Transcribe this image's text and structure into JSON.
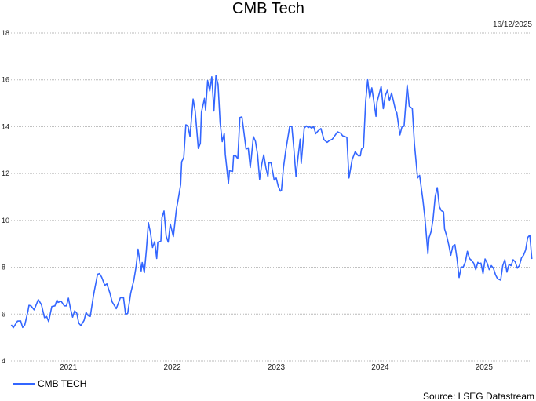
{
  "chart_data": {
    "type": "line",
    "title": "CMB Tech",
    "date_label": "16/12/2025",
    "source": "Source: LSEG Datastream",
    "xlabel": "",
    "ylabel": "",
    "ylim": [
      4,
      18
    ],
    "yticks": [
      4,
      6,
      8,
      10,
      12,
      14,
      16,
      18
    ],
    "ytick_labels": [
      "4",
      "6",
      "8",
      "10",
      "12",
      "14",
      "16",
      "18"
    ],
    "xlim": [
      2020.95,
      2025.96
    ],
    "xticks": [
      2021.5,
      2022.5,
      2023.5,
      2024.5,
      2025.5
    ],
    "xtick_labels": [
      "2021",
      "2022",
      "2023",
      "2024",
      "2025"
    ],
    "grid": "horizontal-dotted",
    "legend_position": "bottom-left",
    "series": [
      {
        "name": "CMB TECH",
        "color": "#3366ff",
        "x": [
          2020.95,
          2020.97,
          2021.01,
          2021.04,
          2021.06,
          2021.08,
          2021.11,
          2021.12,
          2021.14,
          2021.17,
          2021.21,
          2021.24,
          2021.27,
          2021.29,
          2021.31,
          2021.34,
          2021.37,
          2021.39,
          2021.4,
          2021.43,
          2021.46,
          2021.48,
          2021.5,
          2021.52,
          2021.54,
          2021.56,
          2021.58,
          2021.6,
          2021.62,
          2021.65,
          2021.67,
          2021.69,
          2021.71,
          2021.74,
          2021.75,
          2021.78,
          2021.8,
          2021.82,
          2021.85,
          2021.87,
          2021.9,
          2021.92,
          2021.96,
          2022.0,
          2022.03,
          2022.05,
          2022.07,
          2022.1,
          2022.13,
          2022.15,
          2022.17,
          2022.2,
          2022.21,
          2022.23,
          2022.25,
          2022.27,
          2022.29,
          2022.31,
          2022.33,
          2022.35,
          2022.36,
          2022.39,
          2022.4,
          2022.42,
          2022.44,
          2022.46,
          2022.48,
          2022.51,
          2022.54,
          2022.55,
          2022.58,
          2022.59,
          2022.61,
          2022.63,
          2022.65,
          2022.67,
          2022.7,
          2022.72,
          2022.75,
          2022.77,
          2022.78,
          2022.81,
          2022.82,
          2022.84,
          2022.86,
          2022.88,
          2022.9,
          2022.92,
          2022.94,
          2022.96,
          2022.98,
          2023.0,
          2023.01,
          2023.04,
          2023.05,
          2023.08,
          2023.09,
          2023.11,
          2023.13,
          2023.15,
          2023.17,
          2023.19,
          2023.21,
          2023.23,
          2023.25,
          2023.26,
          2023.28,
          2023.3,
          2023.32,
          2023.34,
          2023.36,
          2023.38,
          2023.4,
          2023.42,
          2023.43,
          2023.45,
          2023.48,
          2023.5,
          2023.52,
          2023.54,
          2023.55,
          2023.57,
          2023.59,
          2023.61,
          2023.63,
          2023.65,
          2023.67,
          2023.69,
          2023.71,
          2023.73,
          2023.74,
          2023.77,
          2023.79,
          2023.81,
          2023.82,
          2023.84,
          2023.86,
          2023.88,
          2023.9,
          2023.93,
          2023.96,
          2023.99,
          2024.01,
          2024.04,
          2024.09,
          2024.12,
          2024.14,
          2024.18,
          2024.2,
          2024.23,
          2024.26,
          2024.29,
          2024.31,
          2024.32,
          2024.34,
          2024.36,
          2024.38,
          2024.4,
          2024.42,
          2024.44,
          2024.46,
          2024.47,
          2024.51,
          2024.53,
          2024.55,
          2024.57,
          2024.59,
          2024.61,
          2024.65,
          2024.66,
          2024.69,
          2024.71,
          2024.73,
          2024.76,
          2024.78,
          2024.81,
          2024.83,
          2024.86,
          2024.88,
          2024.91,
          2024.93,
          2024.96,
          2024.97,
          2024.99,
          2025.01,
          2025.03,
          2025.05,
          2025.07,
          2025.09,
          2025.11,
          2025.12,
          2025.14,
          2025.16,
          2025.18,
          2025.2,
          2025.22,
          2025.24,
          2025.26,
          2025.28,
          2025.3,
          2025.32,
          2025.34,
          2025.36,
          2025.38,
          2025.4,
          2025.42,
          2025.44,
          2025.45,
          2025.47,
          2025.49,
          2025.51,
          2025.53,
          2025.55,
          2025.57,
          2025.59,
          2025.61,
          2025.63,
          2025.66,
          2025.68,
          2025.7,
          2025.72,
          2025.74,
          2025.76,
          2025.78,
          2025.8,
          2025.82,
          2025.84,
          2025.86,
          2025.88,
          2025.9,
          2025.92,
          2025.94,
          2025.96
        ],
        "y": [
          5.54,
          5.42,
          5.7,
          5.71,
          5.43,
          5.54,
          6.12,
          6.37,
          6.35,
          6.18,
          6.62,
          6.4,
          5.85,
          5.9,
          5.68,
          6.32,
          6.35,
          6.6,
          6.5,
          6.55,
          6.35,
          6.35,
          6.68,
          6.23,
          5.87,
          6.14,
          6.04,
          5.61,
          5.51,
          5.73,
          6.07,
          5.93,
          5.9,
          6.77,
          7.01,
          7.7,
          7.73,
          7.57,
          7.23,
          7.29,
          6.88,
          6.53,
          6.23,
          6.7,
          6.7,
          5.99,
          6.03,
          6.9,
          7.46,
          8.01,
          8.77,
          7.84,
          8.2,
          7.77,
          8.73,
          9.9,
          9.46,
          8.84,
          9.09,
          8.37,
          9.07,
          9.12,
          10.12,
          10.4,
          9.34,
          9.07,
          9.84,
          9.31,
          10.51,
          10.73,
          11.53,
          12.5,
          12.69,
          14.08,
          14.03,
          13.58,
          15.18,
          14.67,
          13.07,
          13.29,
          14.62,
          15.21,
          14.71,
          15.97,
          15.52,
          16.13,
          14.67,
          16.19,
          15.8,
          14.17,
          13.36,
          13.72,
          12.82,
          11.58,
          12.12,
          12.09,
          12.76,
          12.76,
          12.63,
          14.39,
          14.42,
          13.72,
          13.04,
          13.1,
          12.26,
          12.65,
          13.58,
          13.38,
          12.82,
          11.75,
          12.39,
          12.8,
          12.26,
          11.87,
          12.46,
          12.46,
          11.72,
          11.81,
          11.45,
          11.25,
          11.27,
          12.28,
          12.93,
          13.49,
          14.02,
          14.0,
          13.04,
          11.87,
          12.71,
          13.47,
          12.43,
          13.94,
          14.03,
          13.96,
          14.0,
          13.94,
          14.0,
          13.7,
          13.81,
          13.92,
          13.44,
          13.33,
          13.4,
          13.47,
          13.78,
          13.72,
          13.61,
          13.55,
          11.81,
          12.59,
          12.93,
          12.76,
          12.76,
          13.04,
          13.12,
          15.05,
          16.0,
          15.22,
          15.66,
          15.05,
          14.44,
          15.05,
          15.72,
          14.77,
          15.33,
          15.55,
          15.11,
          15.44,
          14.66,
          14.6,
          13.65,
          13.99,
          14.02,
          15.78,
          14.88,
          14.77,
          13.26,
          11.81,
          11.92,
          10.92,
          10.16,
          8.57,
          9.24,
          9.52,
          10.08,
          11.03,
          11.4,
          10.58,
          10.41,
          10.36,
          9.63,
          9.35,
          8.96,
          8.51,
          8.91,
          8.96,
          8.35,
          7.56,
          8.01,
          8.01,
          8.23,
          8.68,
          8.37,
          8.29,
          8.18,
          7.9,
          8.21,
          8.15,
          8.18,
          7.73,
          8.35,
          8.18,
          7.9,
          8.07,
          7.96,
          7.68,
          7.51,
          7.45,
          8.07,
          8.32,
          7.79,
          8.12,
          8.07,
          8.32,
          8.23,
          7.96,
          8.07,
          8.4,
          8.51,
          8.74,
          9.27,
          9.37,
          8.35
        ]
      }
    ]
  }
}
